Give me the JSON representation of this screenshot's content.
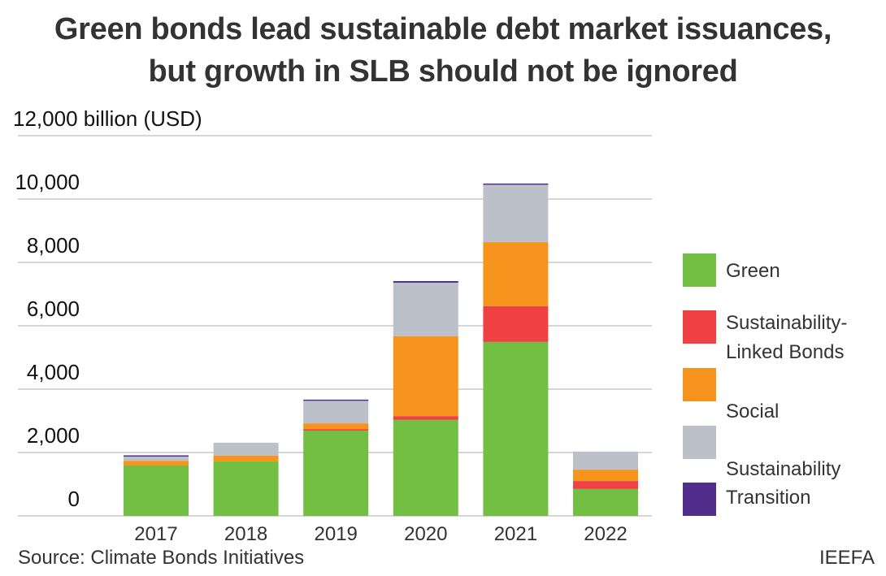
{
  "chart_data": {
    "type": "bar",
    "stacked": true,
    "title": "Green bonds lead sustainable debt market issuances, but growth in SLB should not be ignored",
    "ylabel": "billion (USD)",
    "xlabel": "",
    "ylim": [
      0,
      12000
    ],
    "yticks": [
      0,
      2000,
      4000,
      6000,
      8000,
      10000,
      12000
    ],
    "ytick_labels": [
      "0",
      "2,000",
      "4,000",
      "6,000",
      "8,000",
      "10,000",
      "12,000 billion (USD)"
    ],
    "grid": true,
    "legend_position": "right",
    "categories": [
      "2017",
      "2018",
      "2019",
      "2020",
      "2021",
      "2022"
    ],
    "series": [
      {
        "name": "Green",
        "color": "#72bf44",
        "values": [
          1590,
          1720,
          2690,
          3030,
          5490,
          850
        ]
      },
      {
        "name": "Sustainability-Linked Bonds",
        "legend_lines": [
          "Sustainability-",
          "Linked Bonds"
        ],
        "color": "#ef4044",
        "values": [
          0,
          0,
          50,
          120,
          1130,
          250
        ]
      },
      {
        "name": "Social",
        "color": "#f7941d",
        "values": [
          150,
          180,
          180,
          2520,
          2020,
          360
        ]
      },
      {
        "name": "Sustainability",
        "color": "#bcc0c8",
        "values": [
          160,
          410,
          720,
          1690,
          1820,
          570
        ]
      },
      {
        "name": "Transition",
        "color": "#512d8c",
        "values": [
          10,
          0,
          30,
          50,
          30,
          0
        ]
      }
    ]
  },
  "source": "Source: Climate Bonds Initiatives",
  "brand": "IEEFA"
}
